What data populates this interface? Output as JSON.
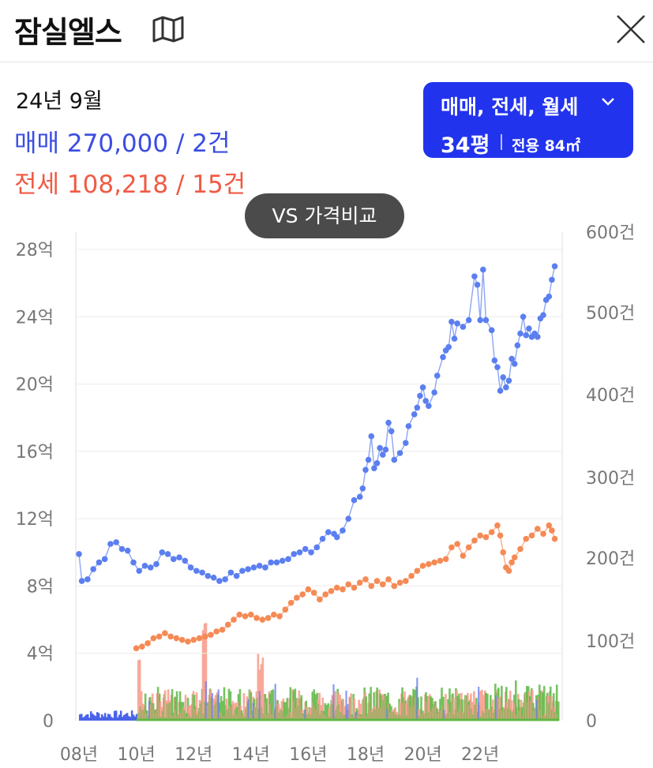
{
  "header": {
    "title": "잠실엘스"
  },
  "summary": {
    "date": "24년 9월",
    "sale": "매매 270,000 / 2건",
    "jeonse": "전세 108,218 / 15건"
  },
  "filter": {
    "types": "매매, 전세, 월세",
    "pyeong": "34평",
    "area": "전용 84㎡"
  },
  "compare_button": "VS 가격비교",
  "colors": {
    "sale": "#5b7ff0",
    "jeonse": "#f58a55",
    "accent": "#2233ee"
  },
  "chart_data": {
    "type": "line",
    "x_ticks": [
      "08년",
      "10년",
      "12년",
      "14년",
      "16년",
      "18년",
      "20년",
      "22년"
    ],
    "y_left_ticks": [
      "0",
      "4억",
      "8억",
      "12억",
      "16억",
      "20억",
      "24억",
      "28억"
    ],
    "y_right_ticks": [
      "0",
      "100건",
      "200건",
      "300건",
      "400건",
      "500건",
      "600건"
    ],
    "y_left_range": [
      0,
      28
    ],
    "y_right_range": [
      0,
      600
    ],
    "x_range": [
      2008.0,
      2024.75
    ],
    "grid": true,
    "series": [
      {
        "color": "#5b7ff0",
        "points": [
          [
            2008.0,
            9.9
          ],
          [
            2008.1,
            8.3
          ],
          [
            2008.3,
            8.4
          ],
          [
            2008.5,
            9.0
          ],
          [
            2008.7,
            9.4
          ],
          [
            2008.9,
            9.6
          ],
          [
            2009.1,
            10.5
          ],
          [
            2009.3,
            10.6
          ],
          [
            2009.5,
            10.2
          ],
          [
            2009.7,
            10.1
          ],
          [
            2009.9,
            9.4
          ],
          [
            2010.1,
            8.9
          ],
          [
            2010.3,
            9.2
          ],
          [
            2010.5,
            9.1
          ],
          [
            2010.7,
            9.3
          ],
          [
            2010.9,
            10.0
          ],
          [
            2011.1,
            9.9
          ],
          [
            2011.3,
            9.6
          ],
          [
            2011.5,
            9.7
          ],
          [
            2011.7,
            9.5
          ],
          [
            2011.9,
            9.1
          ],
          [
            2012.1,
            8.9
          ],
          [
            2012.3,
            8.8
          ],
          [
            2012.5,
            8.6
          ],
          [
            2012.7,
            8.5
          ],
          [
            2012.9,
            8.3
          ],
          [
            2013.1,
            8.4
          ],
          [
            2013.3,
            8.8
          ],
          [
            2013.5,
            8.6
          ],
          [
            2013.7,
            8.9
          ],
          [
            2013.9,
            9.0
          ],
          [
            2014.1,
            9.1
          ],
          [
            2014.3,
            9.2
          ],
          [
            2014.5,
            9.1
          ],
          [
            2014.7,
            9.4
          ],
          [
            2014.9,
            9.4
          ],
          [
            2015.1,
            9.5
          ],
          [
            2015.3,
            9.6
          ],
          [
            2015.5,
            9.9
          ],
          [
            2015.7,
            10.0
          ],
          [
            2015.9,
            10.2
          ],
          [
            2016.1,
            10.0
          ],
          [
            2016.3,
            10.3
          ],
          [
            2016.5,
            10.8
          ],
          [
            2016.7,
            11.2
          ],
          [
            2016.9,
            11.1
          ],
          [
            2017.0,
            10.9
          ],
          [
            2017.2,
            11.3
          ],
          [
            2017.4,
            12.0
          ],
          [
            2017.6,
            13.1
          ],
          [
            2017.8,
            13.3
          ],
          [
            2017.9,
            13.8
          ],
          [
            2018.0,
            14.9
          ],
          [
            2018.1,
            15.5
          ],
          [
            2018.2,
            16.9
          ],
          [
            2018.3,
            15.0
          ],
          [
            2018.4,
            15.3
          ],
          [
            2018.5,
            16.2
          ],
          [
            2018.6,
            15.8
          ],
          [
            2018.7,
            16.1
          ],
          [
            2018.8,
            17.7
          ],
          [
            2018.9,
            17.2
          ],
          [
            2019.0,
            15.5
          ],
          [
            2019.2,
            15.9
          ],
          [
            2019.4,
            16.5
          ],
          [
            2019.5,
            17.5
          ],
          [
            2019.7,
            18.2
          ],
          [
            2019.8,
            18.6
          ],
          [
            2019.9,
            19.3
          ],
          [
            2020.0,
            19.8
          ],
          [
            2020.1,
            19.0
          ],
          [
            2020.2,
            18.7
          ],
          [
            2020.4,
            19.5
          ],
          [
            2020.5,
            20.5
          ],
          [
            2020.7,
            21.6
          ],
          [
            2020.8,
            22.0
          ],
          [
            2020.9,
            22.2
          ],
          [
            2021.0,
            23.7
          ],
          [
            2021.1,
            22.7
          ],
          [
            2021.2,
            23.6
          ],
          [
            2021.4,
            23.4
          ],
          [
            2021.6,
            23.8
          ],
          [
            2021.8,
            26.4
          ],
          [
            2021.9,
            25.9
          ],
          [
            2022.0,
            23.8
          ],
          [
            2022.1,
            26.8
          ],
          [
            2022.2,
            23.8
          ],
          [
            2022.4,
            23.2
          ],
          [
            2022.5,
            21.4
          ],
          [
            2022.6,
            21.0
          ],
          [
            2022.7,
            19.6
          ],
          [
            2022.8,
            20.4
          ],
          [
            2022.9,
            19.8
          ],
          [
            2023.0,
            20.2
          ],
          [
            2023.1,
            21.5
          ],
          [
            2023.2,
            21.2
          ],
          [
            2023.3,
            22.3
          ],
          [
            2023.4,
            23.0
          ],
          [
            2023.5,
            24.0
          ],
          [
            2023.6,
            22.9
          ],
          [
            2023.7,
            23.3
          ],
          [
            2023.8,
            22.8
          ],
          [
            2023.9,
            23.0
          ],
          [
            2024.0,
            22.8
          ],
          [
            2024.1,
            23.9
          ],
          [
            2024.2,
            24.1
          ],
          [
            2024.3,
            25.0
          ],
          [
            2024.4,
            25.2
          ],
          [
            2024.5,
            26.2
          ],
          [
            2024.6,
            27.0
          ]
        ]
      },
      {
        "color": "#f58a55",
        "points": [
          [
            2010.0,
            4.3
          ],
          [
            2010.2,
            4.4
          ],
          [
            2010.4,
            4.6
          ],
          [
            2010.6,
            4.9
          ],
          [
            2010.8,
            5.0
          ],
          [
            2011.0,
            5.2
          ],
          [
            2011.2,
            5.0
          ],
          [
            2011.4,
            4.9
          ],
          [
            2011.6,
            4.8
          ],
          [
            2011.8,
            4.7
          ],
          [
            2012.0,
            4.8
          ],
          [
            2012.2,
            4.9
          ],
          [
            2012.4,
            5.0
          ],
          [
            2012.6,
            5.1
          ],
          [
            2012.8,
            5.3
          ],
          [
            2013.0,
            5.4
          ],
          [
            2013.2,
            5.7
          ],
          [
            2013.4,
            6.0
          ],
          [
            2013.6,
            6.3
          ],
          [
            2013.8,
            6.2
          ],
          [
            2014.0,
            6.3
          ],
          [
            2014.2,
            6.1
          ],
          [
            2014.4,
            6.0
          ],
          [
            2014.6,
            6.1
          ],
          [
            2014.8,
            6.3
          ],
          [
            2015.0,
            6.2
          ],
          [
            2015.2,
            6.6
          ],
          [
            2015.4,
            7.0
          ],
          [
            2015.6,
            7.3
          ],
          [
            2015.8,
            7.5
          ],
          [
            2016.0,
            7.8
          ],
          [
            2016.2,
            7.6
          ],
          [
            2016.4,
            7.2
          ],
          [
            2016.6,
            7.5
          ],
          [
            2016.8,
            7.7
          ],
          [
            2017.0,
            7.9
          ],
          [
            2017.2,
            7.8
          ],
          [
            2017.4,
            8.1
          ],
          [
            2017.6,
            7.9
          ],
          [
            2017.8,
            8.2
          ],
          [
            2018.0,
            8.4
          ],
          [
            2018.2,
            8.0
          ],
          [
            2018.4,
            8.3
          ],
          [
            2018.6,
            8.1
          ],
          [
            2018.8,
            8.4
          ],
          [
            2019.0,
            8.0
          ],
          [
            2019.2,
            8.2
          ],
          [
            2019.4,
            8.3
          ],
          [
            2019.6,
            8.6
          ],
          [
            2019.8,
            8.9
          ],
          [
            2020.0,
            9.2
          ],
          [
            2020.2,
            9.3
          ],
          [
            2020.4,
            9.4
          ],
          [
            2020.6,
            9.5
          ],
          [
            2020.8,
            9.6
          ],
          [
            2021.0,
            10.3
          ],
          [
            2021.2,
            10.5
          ],
          [
            2021.4,
            9.8
          ],
          [
            2021.6,
            10.3
          ],
          [
            2021.8,
            10.7
          ],
          [
            2022.0,
            11.0
          ],
          [
            2022.2,
            10.9
          ],
          [
            2022.4,
            11.2
          ],
          [
            2022.6,
            11.6
          ],
          [
            2022.7,
            11.0
          ],
          [
            2022.8,
            10.0
          ],
          [
            2022.9,
            9.1
          ],
          [
            2023.0,
            8.9
          ],
          [
            2023.1,
            9.4
          ],
          [
            2023.2,
            9.7
          ],
          [
            2023.4,
            10.2
          ],
          [
            2023.6,
            10.8
          ],
          [
            2023.8,
            11.0
          ],
          [
            2024.0,
            11.4
          ],
          [
            2024.2,
            11.1
          ],
          [
            2024.4,
            11.6
          ],
          [
            2024.5,
            11.3
          ],
          [
            2024.6,
            10.8
          ]
        ]
      }
    ]
  }
}
